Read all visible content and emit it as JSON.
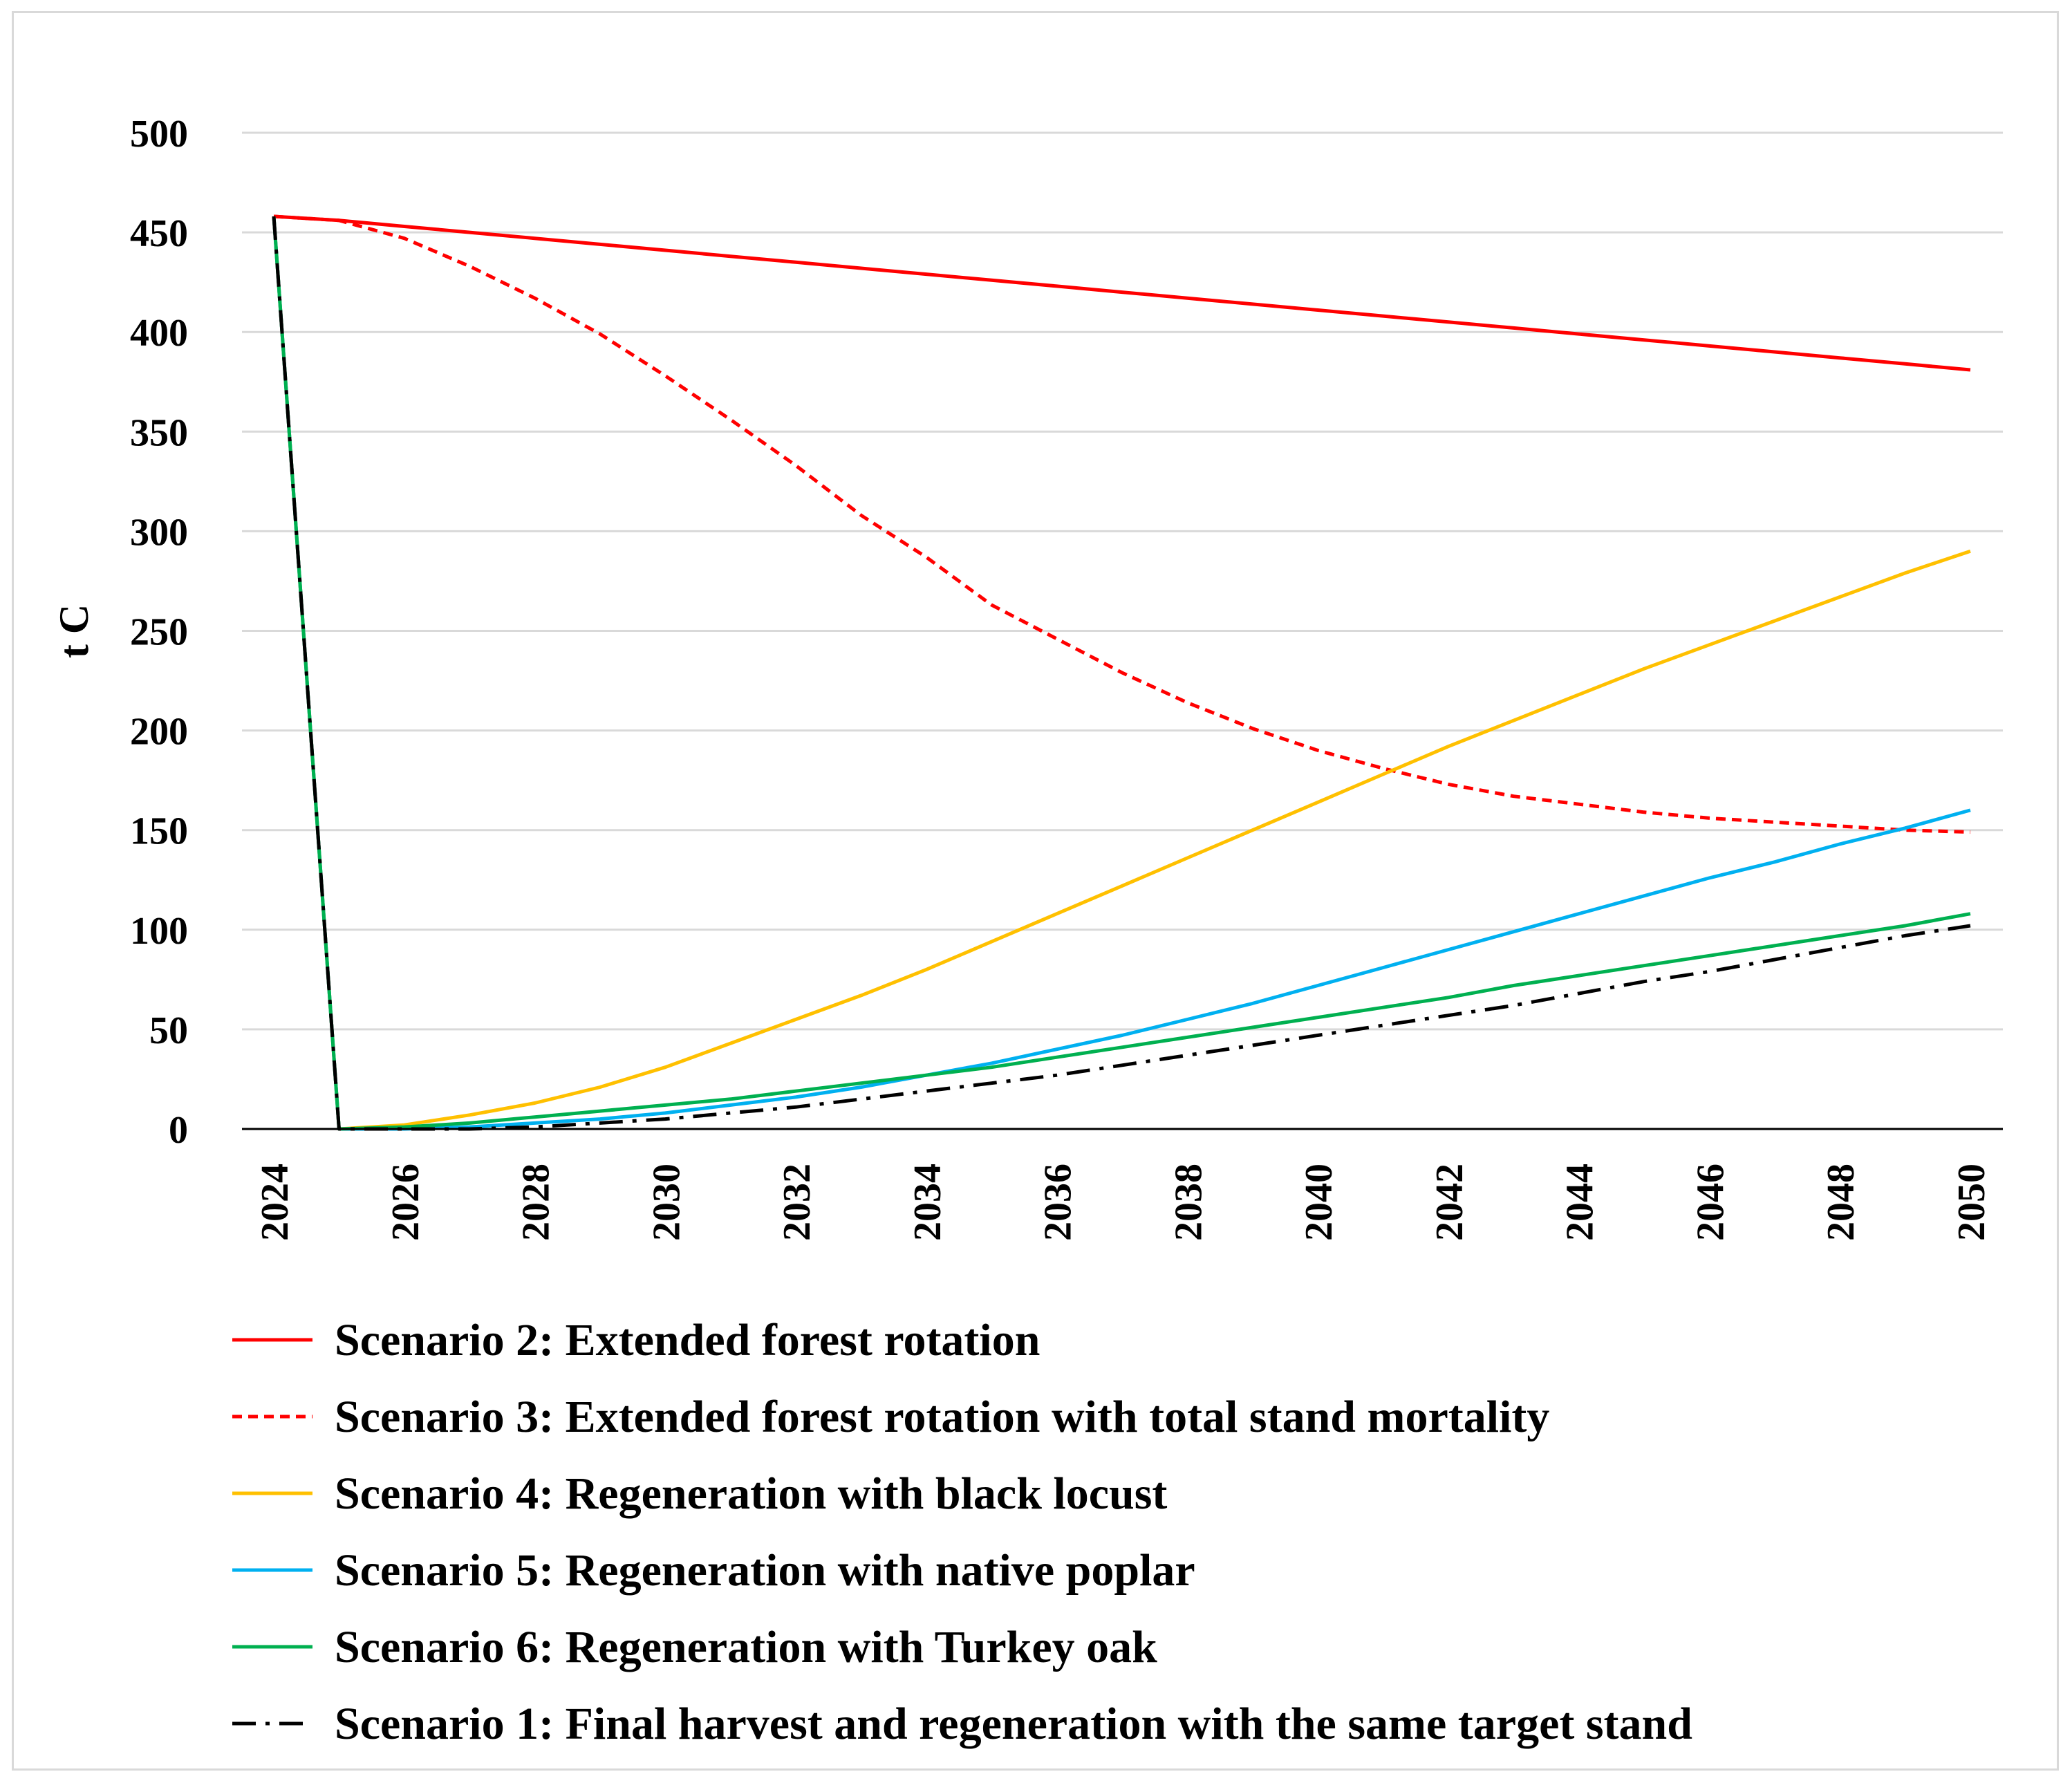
{
  "chart_data": {
    "type": "line",
    "title": "",
    "xlabel": "",
    "ylabel": "t C",
    "xlim": [
      2024,
      2050
    ],
    "ylim": [
      0,
      500
    ],
    "yticks": [
      0,
      50,
      100,
      150,
      200,
      250,
      300,
      350,
      400,
      450,
      500
    ],
    "xticks": [
      2024,
      2026,
      2028,
      2030,
      2032,
      2034,
      2036,
      2038,
      2040,
      2042,
      2044,
      2046,
      2048,
      2050
    ],
    "grid": "horizontal",
    "legend_position": "bottom",
    "x": [
      2024,
      2025,
      2026,
      2027,
      2028,
      2029,
      2030,
      2031,
      2032,
      2033,
      2034,
      2035,
      2036,
      2037,
      2038,
      2039,
      2040,
      2041,
      2042,
      2043,
      2044,
      2045,
      2046,
      2047,
      2048,
      2049,
      2050
    ],
    "series": [
      {
        "name": "Scenario 2: Extended forest rotation",
        "color": "#ff0000",
        "dash": "solid",
        "values": [
          458,
          456,
          453,
          450,
          447,
          444,
          441,
          438,
          435,
          432,
          429,
          426,
          423,
          420,
          417,
          414,
          411,
          408,
          405,
          402,
          399,
          396,
          393,
          390,
          387,
          384,
          381
        ]
      },
      {
        "name": "Scenario 3: Extended forest rotation with total stand mortality",
        "color": "#ff0000",
        "dash": "dashed",
        "values": [
          458,
          456,
          447,
          433,
          417,
          399,
          378,
          356,
          333,
          308,
          287,
          263,
          246,
          229,
          214,
          201,
          190,
          181,
          173,
          167,
          163,
          159,
          156,
          154,
          152,
          150,
          149
        ]
      },
      {
        "name": "Scenario 4: Regeneration with black locust",
        "color": "#ffc000",
        "dash": "solid",
        "values": [
          458,
          0,
          2,
          7,
          13,
          21,
          31,
          43,
          55,
          67,
          80,
          94,
          108,
          122,
          136,
          150,
          164,
          178,
          192,
          205,
          218,
          231,
          243,
          255,
          267,
          279,
          290
        ]
      },
      {
        "name": "Scenario 5: Regeneration with native poplar",
        "color": "#00b0f0",
        "dash": "solid",
        "values": [
          458,
          0,
          0,
          1,
          3,
          5,
          8,
          12,
          16,
          21,
          27,
          33,
          40,
          47,
          55,
          63,
          72,
          81,
          90,
          99,
          108,
          117,
          126,
          134,
          143,
          151,
          160
        ]
      },
      {
        "name": "Scenario 6: Regeneration with Turkey oak",
        "color": "#00b050",
        "dash": "solid",
        "values": [
          458,
          0,
          1,
          3,
          6,
          9,
          12,
          15,
          19,
          23,
          27,
          31,
          36,
          41,
          46,
          51,
          56,
          61,
          66,
          72,
          77,
          82,
          87,
          92,
          97,
          102,
          108
        ]
      },
      {
        "name": "Scenario 1: Final harvest and regeneration with the same target stand",
        "color": "#000000",
        "dash": "dashdot",
        "values": [
          458,
          0,
          0,
          0,
          1,
          3,
          5,
          8,
          11,
          15,
          19,
          23,
          27,
          32,
          37,
          42,
          47,
          52,
          57,
          62,
          68,
          74,
          79,
          85,
          91,
          97,
          102
        ]
      }
    ]
  }
}
